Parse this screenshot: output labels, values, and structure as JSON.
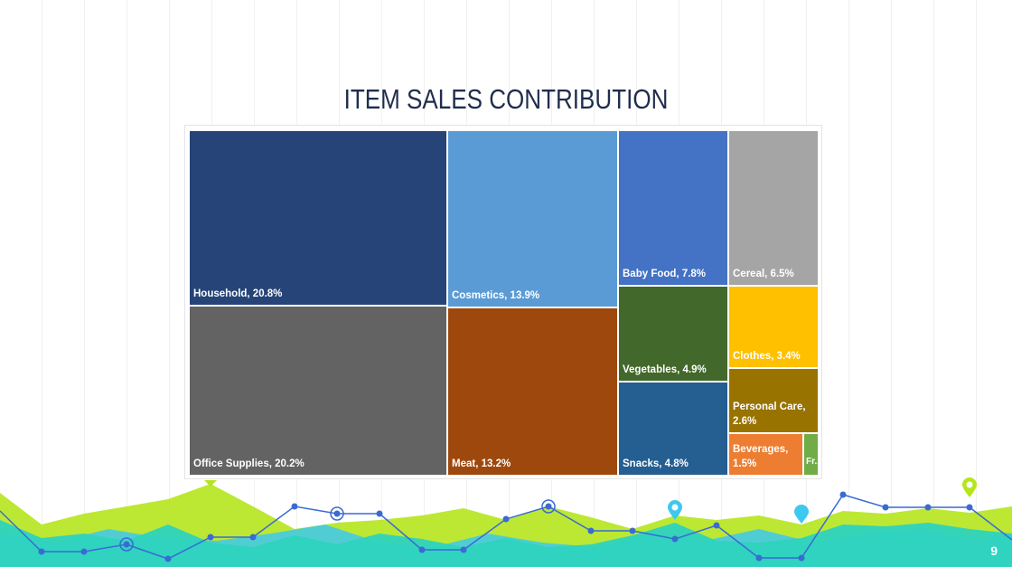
{
  "slide": {
    "title": "ITEM SALES CONTRIBUTION",
    "page_number": "9"
  },
  "colors": {
    "lime": "#b5e61d",
    "teal": "#2dd3bf",
    "cyan": "#3dc8ef",
    "line_blue": "#3a6ad4",
    "title_navy": "#1f2d4d"
  },
  "chart_data": {
    "type": "treemap",
    "title": "",
    "items": [
      {
        "label": "Household, 20.8%",
        "name": "Household",
        "value": 20.8,
        "color": "#264478"
      },
      {
        "label": "Office Supplies, 20.2%",
        "name": "Office Supplies",
        "value": 20.2,
        "color": "#636363"
      },
      {
        "label": "Cosmetics, 13.9%",
        "name": "Cosmetics",
        "value": 13.9,
        "color": "#5b9bd5"
      },
      {
        "label": "Meat, 13.2%",
        "name": "Meat",
        "value": 13.2,
        "color": "#9e480e"
      },
      {
        "label": "Baby Food, 7.8%",
        "name": "Baby Food",
        "value": 7.8,
        "color": "#4472c4"
      },
      {
        "label": "Cereal, 6.5%",
        "name": "Cereal",
        "value": 6.5,
        "color": "#a5a5a5"
      },
      {
        "label": "Vegetables, 4.9%",
        "name": "Vegetables",
        "value": 4.9,
        "color": "#43682b"
      },
      {
        "label": "Snacks, 4.8%",
        "name": "Snacks",
        "value": 4.8,
        "color": "#255e91"
      },
      {
        "label": "Clothes, 3.4%",
        "name": "Clothes",
        "value": 3.4,
        "color": "#ffc000"
      },
      {
        "label": "Personal Care, 2.6%",
        "name": "Personal Care",
        "value": 2.6,
        "color": "#997300"
      },
      {
        "label": "Beverages, 1.5%",
        "name": "Beverages",
        "value": 1.5,
        "color": "#ed7d31"
      },
      {
        "label": "Fr...",
        "name": "Fruits",
        "value": 0.6,
        "color": "#70ad47"
      }
    ]
  }
}
